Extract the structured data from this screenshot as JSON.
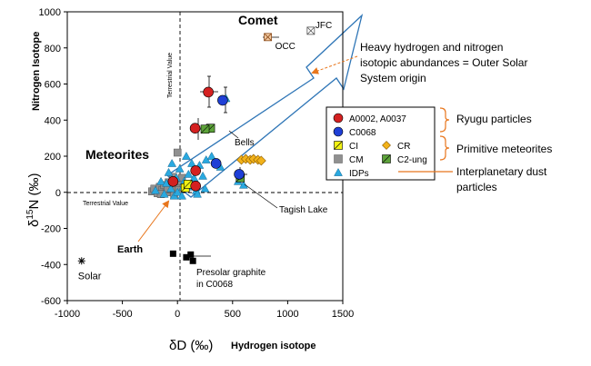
{
  "chart_data": {
    "type": "scatter",
    "xlim": [
      -1000,
      1500
    ],
    "ylim": [
      -600,
      1000
    ],
    "x_ticks": [
      -1000,
      -500,
      0,
      500,
      1000,
      1500
    ],
    "y_ticks": [
      -600,
      -400,
      -200,
      0,
      200,
      400,
      600,
      800,
      1000
    ],
    "x_tick_labels": [
      "-1000",
      "-500",
      "0",
      "500",
      "1000",
      "1500"
    ],
    "y_tick_labels": [
      "-600",
      "-400",
      "-200",
      "0",
      "200",
      "400",
      "600",
      "800",
      "1000"
    ],
    "xlabel_symbol": "δD (‰)",
    "xlabel_text": "Hydrogen isotope",
    "ylabel_symbol": "δ15N (‰)",
    "ylabel_text": "Nitrogen Isotope",
    "grid": false,
    "legend_position": "right",
    "reference_lines": {
      "vertical_label": "Terrestrial Value",
      "horizontal_label": "Terrestrial Value"
    },
    "series": [
      {
        "name": "A0002, A0037",
        "color": "#d42020",
        "marker": "circle",
        "points": [
          [
            280,
            555
          ],
          [
            160,
            355
          ],
          [
            165,
            120
          ],
          [
            165,
            35
          ],
          [
            -40,
            60
          ]
        ]
      },
      {
        "name": "C0068",
        "color": "#1f3fd6",
        "marker": "circle",
        "points": [
          [
            410,
            510
          ],
          [
            350,
            160
          ],
          [
            560,
            100
          ]
        ]
      },
      {
        "name": "CI",
        "color": "#f2f212",
        "marker": "square-cross",
        "points": [
          [
            70,
            25
          ],
          [
            95,
            45
          ]
        ]
      },
      {
        "name": "CR",
        "color": "#f2b21a",
        "marker": "diamond",
        "points": [
          [
            580,
            180
          ],
          [
            620,
            185
          ],
          [
            660,
            180
          ],
          [
            690,
            185
          ],
          [
            730,
            180
          ],
          [
            760,
            175
          ]
        ]
      },
      {
        "name": "CM",
        "color": "#909090",
        "marker": "square",
        "points": [
          [
            -230,
            5
          ],
          [
            -210,
            20
          ],
          [
            -180,
            -5
          ],
          [
            -160,
            30
          ],
          [
            -140,
            10
          ],
          [
            -120,
            40
          ],
          [
            -100,
            0
          ],
          [
            -80,
            55
          ],
          [
            -60,
            15
          ],
          [
            -40,
            85
          ],
          [
            -30,
            -15
          ],
          [
            -10,
            30
          ],
          [
            10,
            10
          ],
          [
            30,
            60
          ],
          [
            -150,
            -10
          ],
          [
            -90,
            20
          ],
          [
            0,
            220
          ],
          [
            40,
            80
          ]
        ]
      },
      {
        "name": "C2-ung",
        "color": "#5da33a",
        "marker": "square-cross",
        "points": [
          [
            300,
            355
          ],
          [
            250,
            350
          ],
          [
            570,
            80
          ]
        ]
      },
      {
        "name": "IDPs",
        "color": "#29a9e0",
        "marker": "triangle",
        "points": [
          [
            -200,
            10
          ],
          [
            -150,
            60
          ],
          [
            -120,
            -10
          ],
          [
            -80,
            110
          ],
          [
            -60,
            20
          ],
          [
            -50,
            160
          ],
          [
            -30,
            -20
          ],
          [
            -10,
            80
          ],
          [
            0,
            0
          ],
          [
            20,
            130
          ],
          [
            40,
            -20
          ],
          [
            60,
            60
          ],
          [
            80,
            200
          ],
          [
            100,
            100
          ],
          [
            120,
            30
          ],
          [
            130,
            160
          ],
          [
            150,
            80
          ],
          [
            170,
            10
          ],
          [
            200,
            150
          ],
          [
            230,
            90
          ],
          [
            260,
            180
          ],
          [
            310,
            200
          ],
          [
            390,
            140
          ],
          [
            440,
            520
          ],
          [
            550,
            60
          ],
          [
            600,
            40
          ],
          [
            -100,
            50
          ],
          [
            50,
            30
          ],
          [
            180,
            -10
          ],
          [
            250,
            20
          ]
        ]
      }
    ],
    "special_points": [
      {
        "label": "OCC",
        "x": 820,
        "y": 860
      },
      {
        "label": "JFC",
        "x": 1210,
        "y": 895
      },
      {
        "label": "Solar",
        "x": -870,
        "y": -380
      }
    ],
    "presolar_graphite_points": [
      [
        -40,
        -340
      ],
      [
        120,
        -345
      ],
      [
        80,
        -360
      ],
      [
        140,
        -380
      ]
    ],
    "presolar_graphite_label": [
      "Presolar graphite",
      "in C0068"
    ],
    "annotations": {
      "comet": "Comet",
      "meteorites": "Meteorites",
      "earth": "Earth",
      "bells": "Bells",
      "tagish": "Tagish Lake",
      "heavy": [
        "Heavy hydrogen and nitrogen",
        "isotopic abundances = Outer Solar",
        "System origin"
      ]
    },
    "groups": {
      "ryugu": "Ryugu particles",
      "primitive": "Primitive meteorites",
      "idp": [
        "Interplanetary dust",
        "particles"
      ]
    }
  }
}
